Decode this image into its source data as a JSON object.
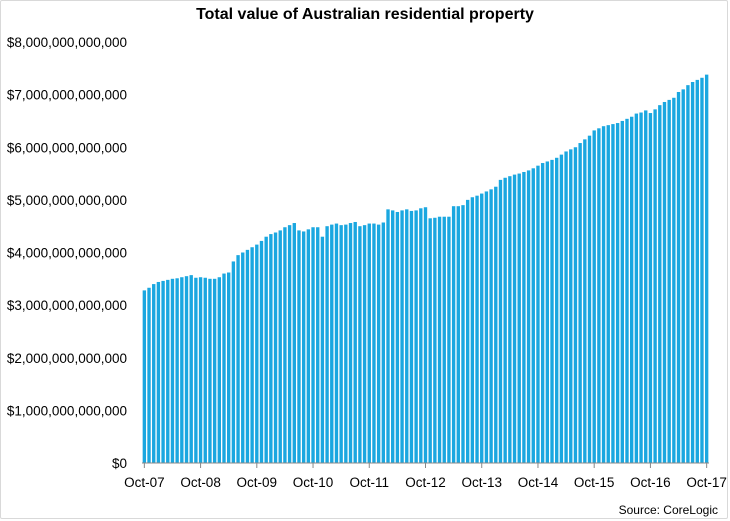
{
  "chart_data": {
    "type": "bar",
    "title": "Total value of Australian residential property",
    "xlabel": "",
    "ylabel": "",
    "ylim": [
      0,
      8000000000000
    ],
    "yticks": [
      {
        "value": 0,
        "label": "$0"
      },
      {
        "value": 1000000000000,
        "label": "$1,000,000,000,000"
      },
      {
        "value": 2000000000000,
        "label": "$2,000,000,000,000"
      },
      {
        "value": 3000000000000,
        "label": "$3,000,000,000,000"
      },
      {
        "value": 4000000000000,
        "label": "$4,000,000,000,000"
      },
      {
        "value": 5000000000000,
        "label": "$5,000,000,000,000"
      },
      {
        "value": 6000000000000,
        "label": "$6,000,000,000,000"
      },
      {
        "value": 7000000000000,
        "label": "$7,000,000,000,000"
      },
      {
        "value": 8000000000000,
        "label": "$8,000,000,000,000"
      }
    ],
    "xticks": [
      {
        "index": 0,
        "label": "Oct-07"
      },
      {
        "index": 12,
        "label": "Oct-08"
      },
      {
        "index": 24,
        "label": "Oct-09"
      },
      {
        "index": 36,
        "label": "Oct-10"
      },
      {
        "index": 48,
        "label": "Oct-11"
      },
      {
        "index": 60,
        "label": "Oct-12"
      },
      {
        "index": 72,
        "label": "Oct-13"
      },
      {
        "index": 84,
        "label": "Oct-14"
      },
      {
        "index": 96,
        "label": "Oct-15"
      },
      {
        "index": 108,
        "label": "Oct-16"
      },
      {
        "index": 120,
        "label": "Oct-17"
      }
    ],
    "series": [
      {
        "color": "#1aa7e0",
        "values_trillions": [
          3.28,
          3.33,
          3.4,
          3.44,
          3.46,
          3.48,
          3.5,
          3.51,
          3.53,
          3.55,
          3.57,
          3.52,
          3.53,
          3.52,
          3.5,
          3.5,
          3.53,
          3.6,
          3.62,
          3.83,
          3.95,
          4.0,
          4.05,
          4.1,
          4.15,
          4.22,
          4.3,
          4.35,
          4.38,
          4.42,
          4.48,
          4.52,
          4.56,
          4.42,
          4.4,
          4.44,
          4.48,
          4.48,
          4.3,
          4.5,
          4.53,
          4.55,
          4.52,
          4.53,
          4.56,
          4.58,
          4.5,
          4.52,
          4.55,
          4.55,
          4.53,
          4.57,
          4.82,
          4.8,
          4.77,
          4.8,
          4.82,
          4.79,
          4.8,
          4.84,
          4.86,
          4.65,
          4.66,
          4.68,
          4.68,
          4.68,
          4.88,
          4.88,
          4.9,
          5.0,
          5.05,
          5.08,
          5.12,
          5.16,
          5.2,
          5.25,
          5.38,
          5.42,
          5.45,
          5.48,
          5.5,
          5.53,
          5.56,
          5.6,
          5.65,
          5.7,
          5.73,
          5.76,
          5.8,
          5.86,
          5.92,
          5.96,
          6.0,
          6.08,
          6.15,
          6.22,
          6.32,
          6.36,
          6.4,
          6.42,
          6.44,
          6.46,
          6.5,
          6.54,
          6.58,
          6.64,
          6.66,
          6.7,
          6.65,
          6.72,
          6.8,
          6.86,
          6.9,
          6.94,
          7.05,
          7.1,
          7.18,
          7.24,
          7.28,
          7.32,
          7.38
        ]
      }
    ],
    "grid": false,
    "legend": "none",
    "source": "Source: CoreLogic"
  }
}
